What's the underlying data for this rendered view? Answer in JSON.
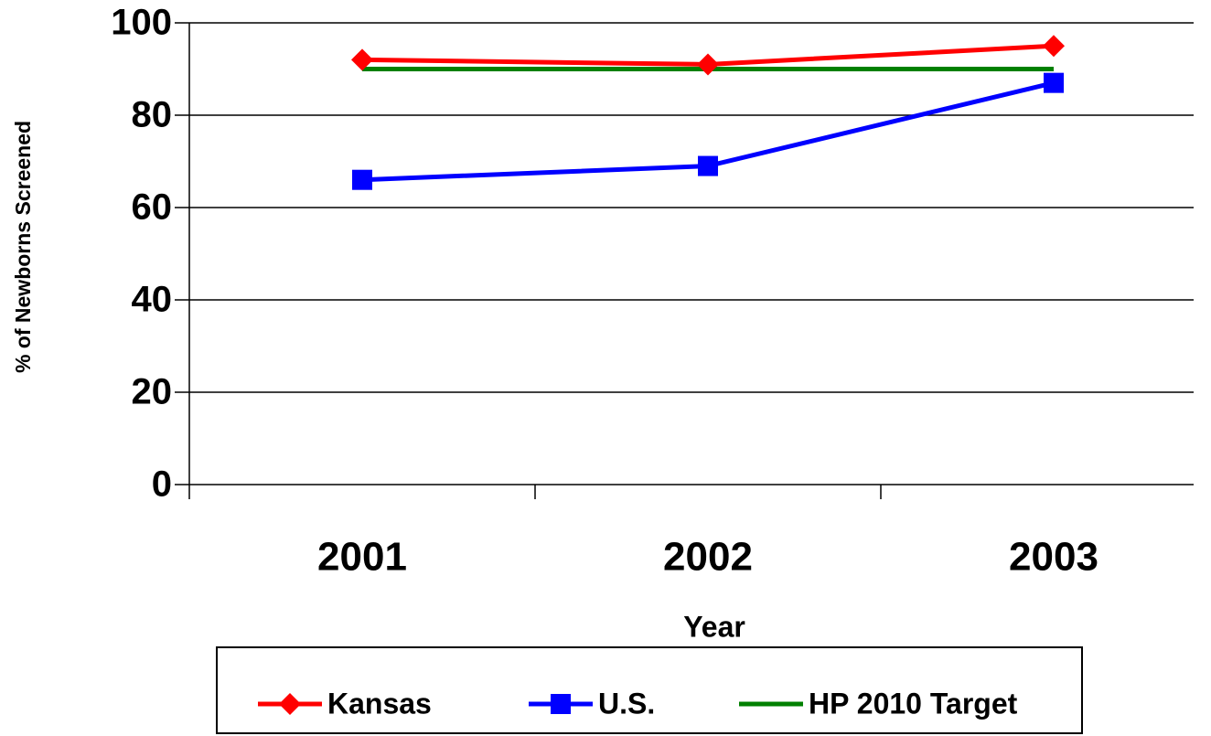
{
  "chart_data": {
    "type": "line",
    "x_label": "Year",
    "y_label": "% of Newborns Screened",
    "categories": [
      "2001",
      "2002",
      "2003"
    ],
    "series": [
      {
        "name": "Kansas",
        "color": "#ff0000",
        "marker": "diamond",
        "values": [
          92,
          91,
          95
        ]
      },
      {
        "name": "U.S.",
        "color": "#0000ff",
        "marker": "square",
        "values": [
          66,
          69,
          87
        ]
      },
      {
        "name": "HP 2010 Target",
        "color": "#008000",
        "marker": "none",
        "values": [
          90,
          90,
          90
        ]
      }
    ],
    "ylim": [
      0,
      100
    ],
    "yticks": [
      0,
      20,
      40,
      60,
      80,
      100
    ],
    "grid": true
  }
}
